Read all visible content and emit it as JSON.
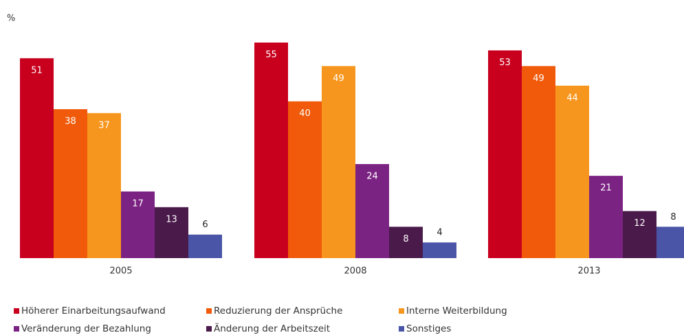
{
  "chart_data": {
    "type": "bar",
    "y_unit": "%",
    "categories": [
      "2005",
      "2008",
      "2013"
    ],
    "ylim": [
      0,
      55
    ],
    "series": [
      {
        "name": "Höherer Einarbeitungsaufwand",
        "color": "#c8001e",
        "values": [
          51,
          55,
          53
        ]
      },
      {
        "name": "Reduzierung der Ansprüche",
        "color": "#f05a0a",
        "values": [
          38,
          40,
          49
        ]
      },
      {
        "name": "Interne Weiterbildung",
        "color": "#f7961e",
        "values": [
          37,
          49,
          44
        ]
      },
      {
        "name": "Veränderung der Bezahlung",
        "color": "#7b2383",
        "values": [
          17,
          24,
          21
        ]
      },
      {
        "name": "Änderung der Arbeitszeit",
        "color": "#4a1a4a",
        "values": [
          13,
          8,
          12
        ]
      },
      {
        "name": "Sonstiges",
        "color": "#4a55a8",
        "values": [
          6,
          4,
          8
        ]
      }
    ]
  }
}
